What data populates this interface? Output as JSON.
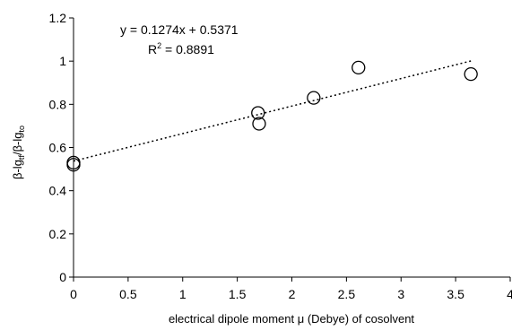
{
  "chart_data": {
    "type": "scatter",
    "xlabel": "electrical dipole moment μ (Debye) of cosolvent",
    "ylabel": {
      "part1": "β-lg",
      "sub1": "tf",
      "part2": "/β-lg",
      "sub2": "to"
    },
    "xlim": [
      0,
      4
    ],
    "ylim": [
      0,
      1.2
    ],
    "x_ticks": [
      "0",
      "0.5",
      "1",
      "1.5",
      "2",
      "2.5",
      "3",
      "3.5",
      "4"
    ],
    "y_ticks": [
      "0",
      "0.2",
      "0.4",
      "0.6",
      "0.8",
      "1",
      "1.2"
    ],
    "grid": false,
    "points": [
      {
        "x": 0,
        "y": 0.53
      },
      {
        "x": 0,
        "y": 0.52
      },
      {
        "x": 1.69,
        "y": 0.76
      },
      {
        "x": 1.7,
        "y": 0.71
      },
      {
        "x": 2.2,
        "y": 0.83
      },
      {
        "x": 2.61,
        "y": 0.97
      },
      {
        "x": 3.64,
        "y": 0.94
      }
    ],
    "trendline": {
      "slope": 0.1274,
      "intercept": 0.5371,
      "x_range": [
        0,
        3.64
      ],
      "style": "dotted"
    },
    "annotations": {
      "equation": "y = 0.1274x + 0.5371",
      "r2_prefix": "R",
      "r2_sup": "2",
      "r2_value": " = 0.8891"
    }
  }
}
